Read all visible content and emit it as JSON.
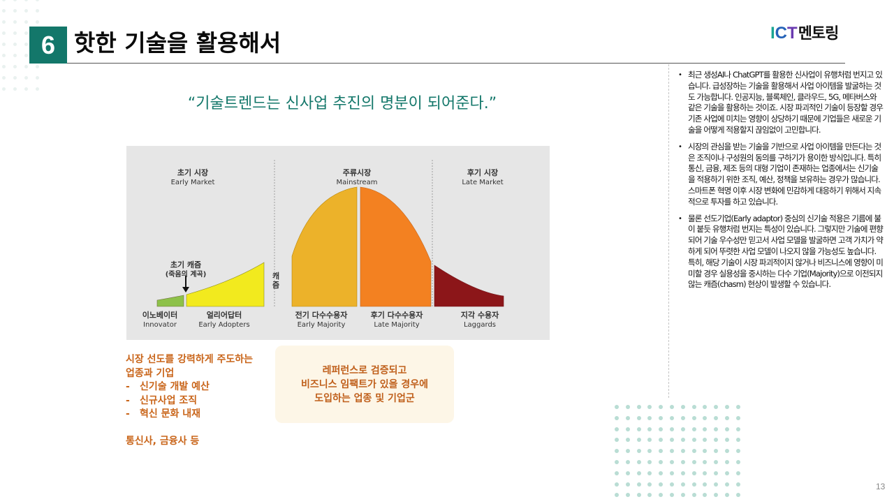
{
  "header": {
    "step_number": "6",
    "title": "핫한 기술을 활용해서",
    "logo": {
      "part_i": "I",
      "part_c": "C",
      "part_t": "T",
      "korean": "멘토링"
    }
  },
  "quote": "“기술트렌드는 신사업 추진의 명분이 되어준다.”",
  "diagram": {
    "markets": [
      {
        "ko": "초기 시장",
        "en": "Early Market"
      },
      {
        "ko": "주류시장",
        "en": "Mainstream"
      },
      {
        "ko": "후기 시장",
        "en": "Late Market"
      }
    ],
    "early_chasm": {
      "title": "초기 캐즘",
      "subtitle": "(죽음의 계곡)"
    },
    "chasm_label_line1": "캐",
    "chasm_label_line2": "즘",
    "segments": [
      {
        "ko": "이노베이터",
        "en": "Innovator",
        "color": "#8dc149"
      },
      {
        "ko": "얼리어답터",
        "en": "Early Adopters",
        "color": "#f2ea1e"
      },
      {
        "ko": "전기 다수수용자",
        "en": "Early Majority",
        "color": "#ecb22a"
      },
      {
        "ko": "후기 다수수용자",
        "en": "Late Majority",
        "color": "#f38121"
      },
      {
        "ko": "지각 수용자",
        "en": "Laggards",
        "color": "#8c1619"
      }
    ]
  },
  "left_notes": {
    "line1": "시장 선도를 강력하게 주도하는",
    "line2": "업종과 기업",
    "items": [
      "신기술 개발 예산",
      "신규사업 조직",
      "혁신 문화 내재"
    ],
    "dash": "-",
    "footer": "통신사, 금융사 등"
  },
  "callout": {
    "lines": [
      "레퍼런스로 검증되고",
      "비즈니스 임팩트가 있을 경우에",
      "도입하는 업종 및 기업군"
    ]
  },
  "right_panel": {
    "bullet_char": "•",
    "bullets": [
      "최근 생성AI나 ChatGPT를 활용한 신사업이 유행처럼 번지고 있습니다. 급성장하는 기술을 활용해서 사업 아이템을 발굴하는 것도 가능합니다. 인공지능, 블록체인, 클라우드, 5G, 메타버스와 같은 기술을 활용하는 것이죠. 시장 파괴적인 기술이 등장할 경우 기존 사업에 미치는 영향이 상당하기 때문에 기업들은 새로운 기술을 어떻게 적용할지 끊임없이 고민합니다.",
      "시장의 관심을 받는 기술을 기반으로 사업 아이템을 만든다는 것은 조직이나 구성원의 동의를 구하기가 용이한 방식입니다. 특히 통신, 금융, 제조 등의 대형 기업이 존재하는 업종에서는 신기술을 적용하기 위한 조직, 예산, 정책을 보유하는 경우가 많습니다. 스마트폰 혁명 이후 시장 변화에 민감하게 대응하기 위해서 지속적으로 투자를 하고 있습니다.",
      "물론 선도기업(Early adaptor) 중심의 신기술 적용은 기름에 불이 붙듯 유행처럼 번지는 특성이 있습니다. 그렇지만 기술에 편향되어 기술 우수성만 믿고서 사업 모델을 발굴하면 고객 가치가 약하게 되어 뚜렷한 사업 모델이 나오지 않을 가능성도 높습니다. 특히, 해당 기술이 시장 파괴적이지 않거나 비즈니스에 영향이 미미할 경우 실용성을 중시하는 다수 기업(Majority)으로 이전되지 않는 캐즘(chasm) 현상이 발생할 수 있습니다."
    ]
  },
  "page_number": "13"
}
